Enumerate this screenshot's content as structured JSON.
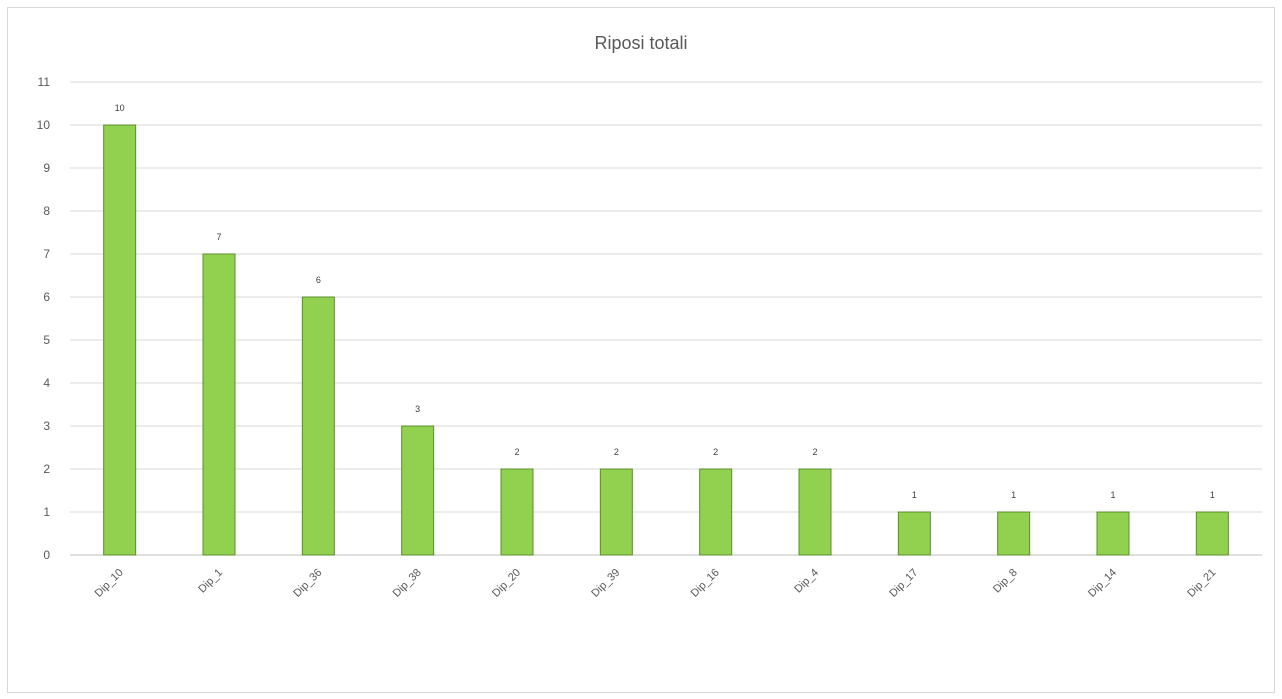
{
  "chart_data": {
    "type": "bar",
    "title": "Riposi totali",
    "categories": [
      "Dip_10",
      "Dip_1",
      "Dip_36",
      "Dip_38",
      "Dip_20",
      "Dip_39",
      "Dip_16",
      "Dip_4",
      "Dip_17",
      "Dip_8",
      "Dip_14",
      "Dip_21"
    ],
    "values": [
      10,
      7,
      6,
      3,
      2,
      2,
      2,
      2,
      1,
      1,
      1,
      1
    ],
    "data_labels": [
      "10",
      "7",
      "6",
      "3",
      "2",
      "2",
      "2",
      "2",
      "1",
      "1",
      "1",
      "1"
    ],
    "y_ticks": [
      "0",
      "1",
      "2",
      "3",
      "4",
      "5",
      "6",
      "7",
      "8",
      "9",
      "10",
      "11"
    ],
    "ylim": [
      0,
      11
    ],
    "grid": true,
    "legend": "none",
    "bar_color": "#92d050",
    "bar_border_color": "#5b8e28",
    "xlabel": "",
    "ylabel": ""
  }
}
